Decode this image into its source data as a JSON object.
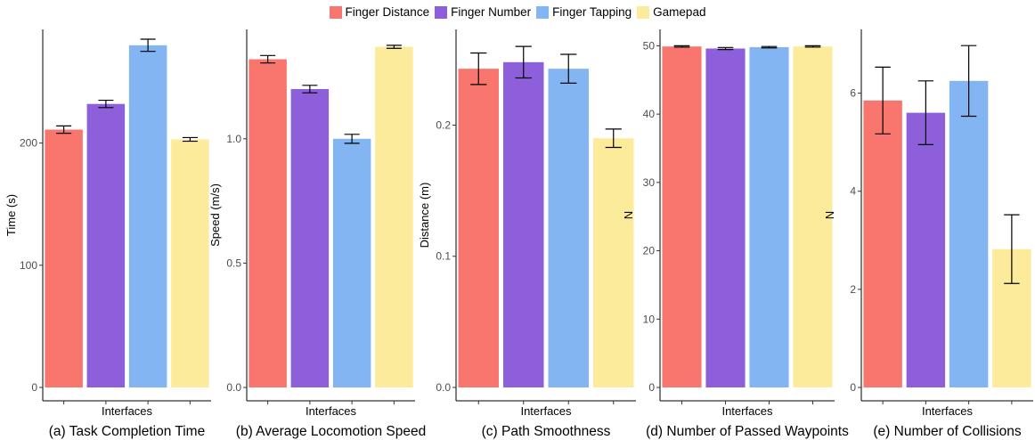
{
  "legend": [
    {
      "label": "Finger Distance",
      "color": "#F8766D"
    },
    {
      "label": "Finger Number",
      "color": "#8E5FDB"
    },
    {
      "label": "Finger Tapping",
      "color": "#83B5F2"
    },
    {
      "label": "Gamepad",
      "color": "#FDEB9C"
    }
  ],
  "chart_data": [
    {
      "type": "bar",
      "title": "(a) Task Completion Time",
      "xlabel": "Interfaces",
      "ylabel": "Time (s)",
      "categories": [
        "Finger Distance",
        "Finger Number",
        "Finger Tapping",
        "Gamepad"
      ],
      "values": [
        211,
        232,
        280,
        203
      ],
      "error": [
        3,
        3,
        5,
        1.5
      ],
      "ylim": [
        0,
        293
      ],
      "yticks": [
        0,
        100,
        200
      ],
      "tick_labels": [
        "0",
        "100",
        "200"
      ]
    },
    {
      "type": "bar",
      "title": "(b) Average Locomotion Speed",
      "xlabel": "Interfaces",
      "ylabel": "Speed (m/s)",
      "categories": [
        "Finger Distance",
        "Finger Number",
        "Finger Tapping",
        "Gamepad"
      ],
      "values": [
        1.32,
        1.2,
        1.0,
        1.37
      ],
      "error": [
        0.015,
        0.015,
        0.018,
        0.006
      ],
      "ylim": [
        0,
        1.44
      ],
      "yticks": [
        0,
        0.5,
        1.0
      ],
      "tick_labels": [
        "0.0",
        "0.5",
        "1.0"
      ]
    },
    {
      "type": "bar",
      "title": "(c) Path Smoothness",
      "xlabel": "Interfaces",
      "ylabel": "Distance (m)",
      "categories": [
        "Finger Distance",
        "Finger Number",
        "Finger Tapping",
        "Gamepad"
      ],
      "values": [
        0.243,
        0.248,
        0.243,
        0.19
      ],
      "error": [
        0.012,
        0.012,
        0.011,
        0.007
      ],
      "ylim": [
        0,
        0.273
      ],
      "yticks": [
        0,
        0.1,
        0.2
      ],
      "tick_labels": [
        "0.0",
        "0.1",
        "0.2"
      ]
    },
    {
      "type": "bar",
      "title": "(d) Number of Passed Waypoints",
      "xlabel": "Interfaces",
      "ylabel": "N",
      "categories": [
        "Finger Distance",
        "Finger Number",
        "Finger Tapping",
        "Gamepad"
      ],
      "values": [
        49.9,
        49.6,
        49.8,
        49.9
      ],
      "error": [
        0.1,
        0.15,
        0.1,
        0.1
      ],
      "ylim": [
        0,
        52.4
      ],
      "yticks": [
        0,
        10,
        20,
        30,
        40,
        50
      ],
      "tick_labels": [
        "0",
        "10",
        "20",
        "30",
        "40",
        "50"
      ]
    },
    {
      "type": "bar",
      "title": "(e) Number of Collisions",
      "xlabel": "Interfaces",
      "ylabel": "N",
      "categories": [
        "Finger Distance",
        "Finger Number",
        "Finger Tapping",
        "Gamepad"
      ],
      "values": [
        5.85,
        5.6,
        6.25,
        2.82
      ],
      "error": [
        0.68,
        0.65,
        0.72,
        0.7
      ],
      "ylim": [
        0,
        7.3
      ],
      "yticks": [
        0,
        2,
        4,
        6
      ],
      "tick_labels": [
        "0",
        "2",
        "4",
        "6"
      ]
    }
  ]
}
